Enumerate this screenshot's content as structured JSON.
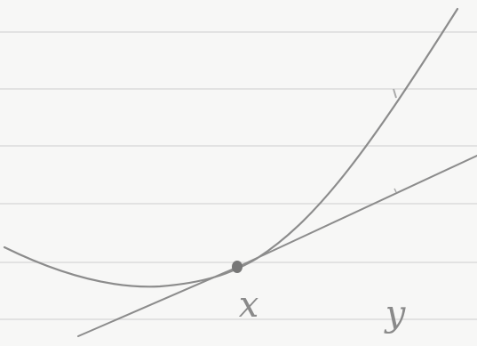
{
  "labels": [
    "x",
    "y"
  ]
}
